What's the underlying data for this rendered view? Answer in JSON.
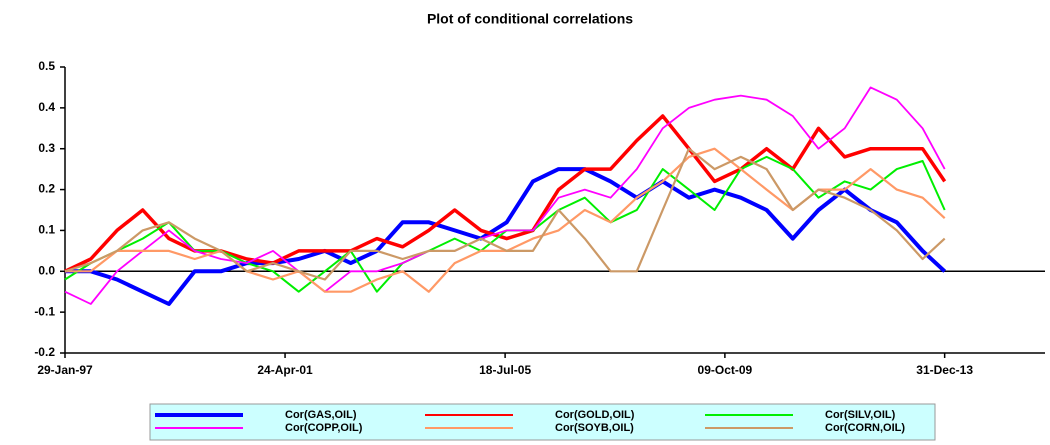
{
  "chart_data": {
    "type": "line",
    "title": "Plot of conditional correlations",
    "x": [
      "1997-01-29",
      "1997-07-29",
      "1998-01-29",
      "1998-07-29",
      "1999-01-29",
      "1999-07-29",
      "2000-01-29",
      "2000-07-29",
      "2001-01-29",
      "2001-07-29",
      "2002-01-29",
      "2002-07-29",
      "2003-01-29",
      "2003-07-29",
      "2004-01-29",
      "2004-07-29",
      "2005-01-29",
      "2005-07-29",
      "2006-01-29",
      "2006-07-29",
      "2007-01-29",
      "2007-07-29",
      "2008-01-29",
      "2008-07-29",
      "2009-01-29",
      "2009-07-29",
      "2010-01-29",
      "2010-07-29",
      "2011-01-29",
      "2011-07-29",
      "2012-01-29",
      "2012-07-29",
      "2013-01-29",
      "2013-07-29",
      "2013-12-31"
    ],
    "series": [
      {
        "name": "Cor(GAS,OIL)",
        "color": "#0000ff",
        "values": [
          0.0,
          0.0,
          -0.02,
          -0.05,
          -0.08,
          0.0,
          0.0,
          0.02,
          0.02,
          0.03,
          0.05,
          0.02,
          0.05,
          0.12,
          0.12,
          0.1,
          0.08,
          0.12,
          0.22,
          0.25,
          0.25,
          0.22,
          0.18,
          0.22,
          0.18,
          0.2,
          0.18,
          0.15,
          0.08,
          0.15,
          0.2,
          0.15,
          0.12,
          0.05,
          0.0
        ]
      },
      {
        "name": "Cor(GOLD,OIL)",
        "color": "#ff0000",
        "values": [
          0.0,
          0.03,
          0.1,
          0.15,
          0.08,
          0.05,
          0.05,
          0.03,
          0.02,
          0.05,
          0.05,
          0.05,
          0.08,
          0.06,
          0.1,
          0.15,
          0.1,
          0.08,
          0.1,
          0.2,
          0.25,
          0.25,
          0.32,
          0.38,
          0.3,
          0.22,
          0.25,
          0.3,
          0.25,
          0.35,
          0.28,
          0.3,
          0.3,
          0.3,
          0.22
        ]
      },
      {
        "name": "Cor(SILV,OIL)",
        "color": "#00ee00",
        "values": [
          -0.02,
          0.02,
          0.05,
          0.08,
          0.12,
          0.05,
          0.05,
          0.02,
          0.0,
          -0.05,
          0.0,
          0.05,
          -0.05,
          0.02,
          0.05,
          0.08,
          0.05,
          0.1,
          0.1,
          0.15,
          0.18,
          0.12,
          0.15,
          0.25,
          0.2,
          0.15,
          0.25,
          0.28,
          0.25,
          0.18,
          0.22,
          0.2,
          0.25,
          0.27,
          0.15
        ]
      },
      {
        "name": "Cor(COPP,OIL)",
        "color": "#ff00ff",
        "values": [
          -0.05,
          -0.08,
          0.0,
          0.05,
          0.1,
          0.05,
          0.03,
          0.02,
          0.05,
          0.0,
          -0.05,
          0.0,
          0.0,
          0.02,
          0.05,
          0.05,
          0.08,
          0.1,
          0.1,
          0.18,
          0.2,
          0.18,
          0.25,
          0.35,
          0.4,
          0.42,
          0.43,
          0.42,
          0.38,
          0.3,
          0.35,
          0.45,
          0.42,
          0.35,
          0.25
        ]
      },
      {
        "name": "Cor(SOYB,OIL)",
        "color": "#ff9966",
        "values": [
          0.0,
          0.0,
          0.05,
          0.05,
          0.05,
          0.03,
          0.05,
          0.0,
          -0.02,
          0.0,
          -0.05,
          -0.05,
          -0.02,
          0.0,
          -0.05,
          0.02,
          0.05,
          0.05,
          0.08,
          0.1,
          0.15,
          0.12,
          0.18,
          0.22,
          0.28,
          0.3,
          0.25,
          0.2,
          0.15,
          0.2,
          0.2,
          0.25,
          0.2,
          0.18,
          0.13
        ]
      },
      {
        "name": "Cor(CORN,OIL)",
        "color": "#cc9966",
        "values": [
          0.0,
          0.02,
          0.05,
          0.1,
          0.12,
          0.08,
          0.05,
          0.0,
          0.02,
          0.0,
          -0.02,
          0.05,
          0.05,
          0.03,
          0.05,
          0.05,
          0.08,
          0.05,
          0.05,
          0.15,
          0.08,
          0.0,
          0.0,
          0.15,
          0.3,
          0.25,
          0.28,
          0.25,
          0.15,
          0.2,
          0.18,
          0.15,
          0.1,
          0.03,
          0.08
        ]
      }
    ],
    "xlim": [
      "1997-01-29",
      "2015-12-06"
    ],
    "xticks": [
      {
        "value": "1997-01-29",
        "label": "29-Jan-97"
      },
      {
        "value": "2001-04-24",
        "label": "24-Apr-01"
      },
      {
        "value": "2005-07-18",
        "label": "18-Jul-05"
      },
      {
        "value": "2009-10-09",
        "label": "09-Oct-09"
      },
      {
        "value": "2013-12-31",
        "label": "31-Dec-13"
      }
    ],
    "ylim": [
      -0.2,
      0.5
    ],
    "yticks": [
      0.5,
      0.4,
      0.3,
      0.2,
      0.1,
      {
        "value": 0,
        "label": "0.0"
      },
      -0.1,
      -0.2
    ],
    "grid": false
  }
}
